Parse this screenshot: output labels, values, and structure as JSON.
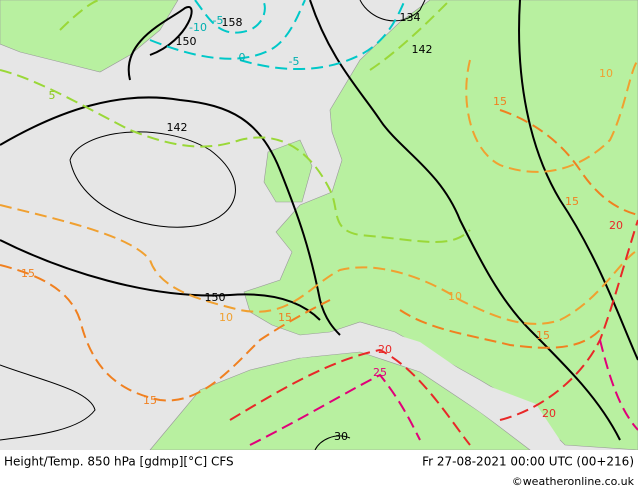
{
  "map": {
    "height_labels": [
      "134",
      "142",
      "158",
      "150",
      "142",
      "150",
      "30"
    ],
    "temperature_labels": [
      "-10",
      "-5",
      "0",
      "-5",
      "5",
      "10",
      "15",
      "10",
      "15",
      "15",
      "20",
      "25",
      "15",
      "15",
      "20",
      "15",
      "10",
      "20"
    ]
  },
  "footer": {
    "left": "Height/Temp. 850 hPa [gdmp][°C] CFS",
    "right": "Fr 27-08-2021 00:00 UTC (00+216)",
    "credit": "©weatheronline.co.uk"
  }
}
